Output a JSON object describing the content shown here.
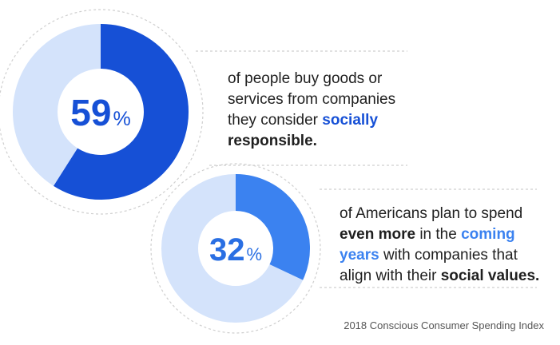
{
  "chart_data": [
    {
      "type": "pie",
      "percent_value": 59,
      "value_label": "59",
      "percent_sign": "%",
      "colors": {
        "fill": "#1650d6",
        "track": "#d4e3fb",
        "text": "#1650d6"
      },
      "statement": {
        "p1": "of people buy goods or services from companies they consider ",
        "h1": "socially",
        "p2": " ",
        "b1": "responsible."
      }
    },
    {
      "type": "pie",
      "percent_value": 32,
      "value_label": "32",
      "percent_sign": "%",
      "colors": {
        "fill": "#3b82f0",
        "track": "#d4e3fb",
        "text": "#2a6fe3"
      },
      "statement": {
        "p1": "of Americans plan to spend ",
        "b1": "even more",
        "p2": " in the ",
        "h1": "coming years",
        "p3": " with companies that align with their ",
        "b2": "social values."
      }
    }
  ],
  "source": "2018 Conscious Consumer Spending Index"
}
